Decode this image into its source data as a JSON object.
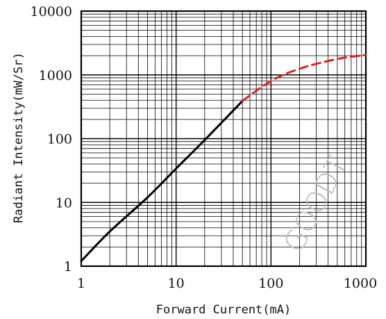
{
  "chart_data": {
    "type": "line",
    "title": "",
    "xlabel": "Forward Current(mA)",
    "ylabel": "Radiant Intensity(mW/Sr)",
    "xscale": "log",
    "yscale": "log",
    "xlim": [
      1,
      1000
    ],
    "ylim": [
      1,
      10000
    ],
    "grid": true,
    "x_ticks": [
      "1",
      "10",
      "100",
      "1000"
    ],
    "y_ticks": [
      "1",
      "10",
      "100",
      "1000",
      "10000"
    ],
    "series": [
      {
        "style": "solid",
        "color": "#000000",
        "points": [
          [
            1,
            1.2
          ],
          [
            2,
            3.5
          ],
          [
            5,
            12
          ],
          [
            10,
            34
          ],
          [
            20,
            95
          ],
          [
            50,
            390
          ]
        ]
      },
      {
        "style": "dashed",
        "color": "#e02020",
        "points": [
          [
            50,
            390
          ],
          [
            100,
            800
          ],
          [
            200,
            1250
          ],
          [
            500,
            1780
          ],
          [
            1000,
            2050
          ]
        ]
      }
    ]
  },
  "watermark": "GOODT"
}
